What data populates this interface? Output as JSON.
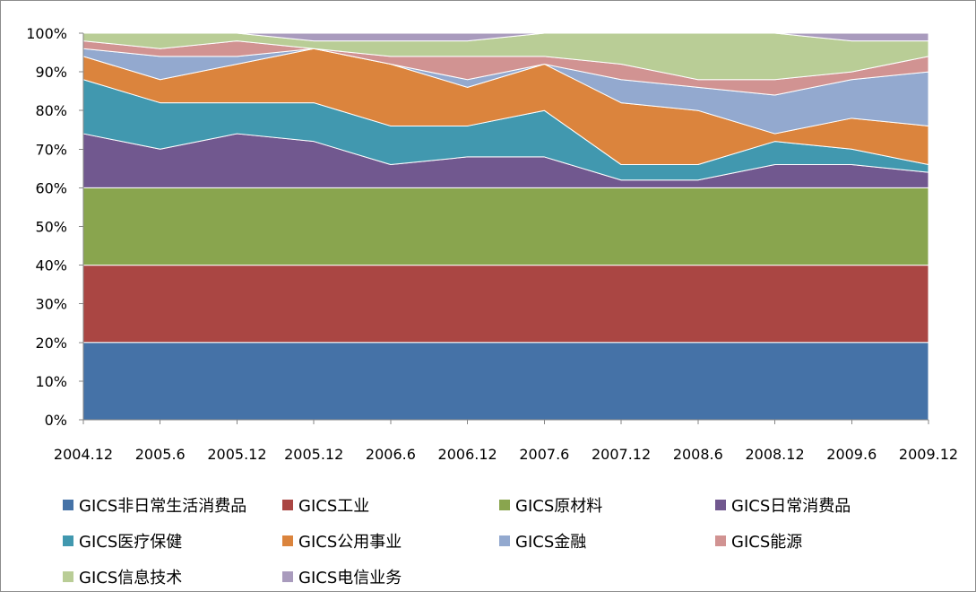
{
  "chart_data": {
    "type": "area",
    "stacked": true,
    "percent": true,
    "categories": [
      "2004.12",
      "2005.6",
      "2005.12",
      "2005.12",
      "2006.6",
      "2006.12",
      "2007.6",
      "2007.12",
      "2008.6",
      "2008.12",
      "2009.6",
      "2009.12"
    ],
    "y_ticks": [
      "0%",
      "10%",
      "20%",
      "30%",
      "40%",
      "50%",
      "60%",
      "70%",
      "80%",
      "90%",
      "100%"
    ],
    "ylim": [
      0,
      100
    ],
    "grid": false,
    "legend_position": "bottom",
    "series": [
      {
        "name": "GICS非日常生活消费品",
        "color": "#4572a7",
        "values": [
          20,
          20,
          20,
          20,
          20,
          20,
          20,
          20,
          20,
          20,
          20,
          20
        ]
      },
      {
        "name": "GICS工业",
        "color": "#aa4643",
        "values": [
          20,
          20,
          20,
          20,
          20,
          20,
          20,
          20,
          20,
          20,
          20,
          20
        ]
      },
      {
        "name": "GICS原材料",
        "color": "#89a54e",
        "values": [
          20,
          20,
          20,
          20,
          20,
          20,
          20,
          20,
          20,
          20,
          20,
          20
        ]
      },
      {
        "name": "GICS日常消费品",
        "color": "#71588f",
        "values": [
          14,
          10,
          14,
          12,
          6,
          8,
          8,
          2,
          2,
          6,
          6,
          4
        ]
      },
      {
        "name": "GICS医疗保健",
        "color": "#4198af",
        "values": [
          14,
          12,
          8,
          10,
          10,
          8,
          12,
          4,
          4,
          6,
          4,
          2
        ]
      },
      {
        "name": "GICS公用事业",
        "color": "#db843d",
        "values": [
          6,
          6,
          10,
          14,
          16,
          10,
          12,
          16,
          14,
          2,
          8,
          10
        ]
      },
      {
        "name": "GICS金融",
        "color": "#93a9cf",
        "values": [
          2,
          6,
          2,
          0,
          0,
          2,
          0,
          6,
          6,
          10,
          10,
          14
        ]
      },
      {
        "name": "GICS能源",
        "color": "#d19392",
        "values": [
          2,
          2,
          4,
          0,
          2,
          6,
          2,
          4,
          2,
          4,
          2,
          4
        ]
      },
      {
        "name": "GICS信息技术",
        "color": "#b9cd96",
        "values": [
          2,
          4,
          2,
          2,
          4,
          4,
          6,
          8,
          12,
          12,
          8,
          4
        ]
      },
      {
        "name": "GICS电信业务",
        "color": "#a99bbd",
        "values": [
          0,
          0,
          0,
          2,
          2,
          2,
          0,
          0,
          0,
          0,
          2,
          2
        ]
      }
    ]
  }
}
